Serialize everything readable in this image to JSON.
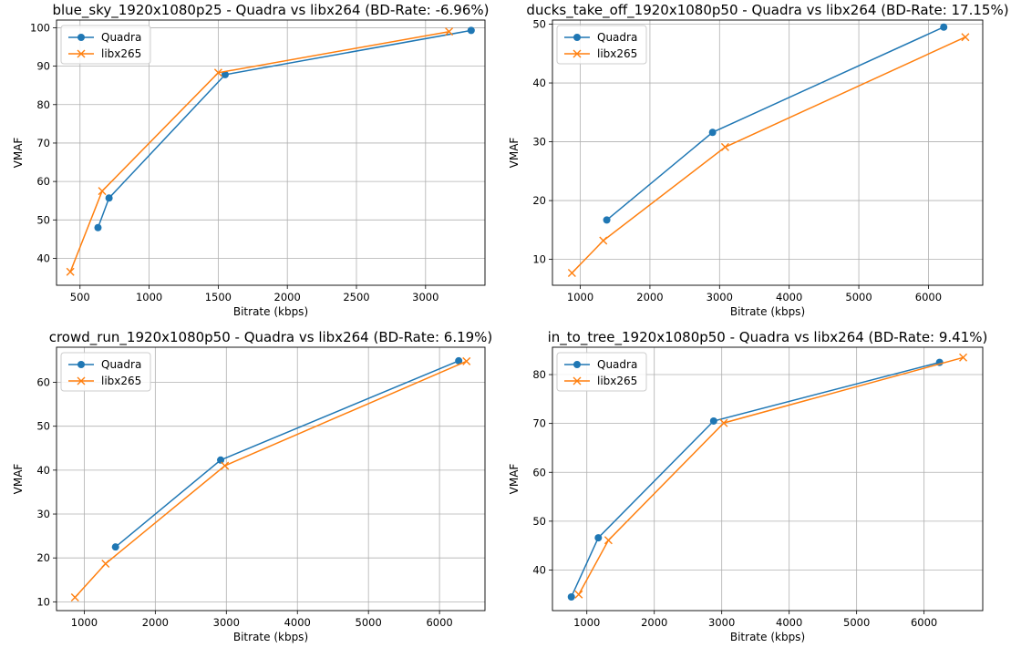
{
  "colors": {
    "quadra": "#1f77b4",
    "libx265": "#ff7f0e",
    "grid": "#b0b0b0"
  },
  "chart_data": [
    {
      "type": "line",
      "title": "blue_sky_1920x1080p25 - Quadra vs libx264 (BD-Rate: -6.96%)",
      "xlabel": "Bitrate (kbps)",
      "ylabel": "VMAF",
      "xlim": [
        330,
        3430
      ],
      "ylim": [
        33,
        102
      ],
      "xticks": [
        500,
        1000,
        1500,
        2000,
        2500,
        3000
      ],
      "yticks": [
        40,
        50,
        60,
        70,
        80,
        90,
        100
      ],
      "grid": true,
      "legend": "top-left",
      "series": [
        {
          "name": "Quadra",
          "marker": "circle",
          "x": [
            630,
            710,
            1550,
            3330
          ],
          "y": [
            48,
            55.7,
            87.8,
            99.3
          ]
        },
        {
          "name": "libx265",
          "marker": "x",
          "x": [
            430,
            660,
            1500,
            3170
          ],
          "y": [
            36.5,
            57.5,
            88.3,
            99.0
          ]
        }
      ]
    },
    {
      "type": "line",
      "title": "ducks_take_off_1920x1080p50 - Quadra vs libx264 (BD-Rate: 17.15%)",
      "xlabel": "Bitrate (kbps)",
      "ylabel": "VMAF",
      "xlim": [
        600,
        6780
      ],
      "ylim": [
        5.6,
        50.7
      ],
      "xticks": [
        1000,
        2000,
        3000,
        4000,
        5000,
        6000
      ],
      "yticks": [
        10,
        20,
        30,
        40,
        50
      ],
      "grid": true,
      "legend": "top-left",
      "series": [
        {
          "name": "Quadra",
          "marker": "circle",
          "x": [
            1380,
            2900,
            6220
          ],
          "y": [
            16.7,
            31.6,
            49.5
          ]
        },
        {
          "name": "libx265",
          "marker": "x",
          "x": [
            880,
            1330,
            3080,
            6530
          ],
          "y": [
            7.7,
            13.2,
            29.1,
            47.8
          ]
        }
      ]
    },
    {
      "type": "line",
      "title": "crowd_run_1920x1080p50 - Quadra vs libx264 (BD-Rate: 6.19%)",
      "xlabel": "Bitrate (kbps)",
      "ylabel": "VMAF",
      "xlim": [
        610,
        6640
      ],
      "ylim": [
        8,
        68
      ],
      "xticks": [
        1000,
        2000,
        3000,
        4000,
        5000,
        6000
      ],
      "yticks": [
        10,
        20,
        30,
        40,
        50,
        60
      ],
      "grid": true,
      "legend": "top-left",
      "series": [
        {
          "name": "Quadra",
          "marker": "circle",
          "x": [
            1440,
            2920,
            6270
          ],
          "y": [
            22.5,
            42.3,
            64.9
          ]
        },
        {
          "name": "libx265",
          "marker": "x",
          "x": [
            870,
            1300,
            2980,
            6380
          ],
          "y": [
            11,
            18.7,
            41,
            64.8
          ]
        }
      ]
    },
    {
      "type": "line",
      "title": "in_to_tree_1920x1080p50 - Quadra vs libx264 (BD-Rate: 9.41%)",
      "xlabel": "Bitrate (kbps)",
      "ylabel": "VMAF",
      "xlim": [
        490,
        6870
      ],
      "ylim": [
        31.7,
        85.6
      ],
      "xticks": [
        1000,
        2000,
        3000,
        4000,
        5000,
        6000
      ],
      "yticks": [
        40,
        50,
        60,
        70,
        80
      ],
      "grid": true,
      "legend": "top-left",
      "series": [
        {
          "name": "Quadra",
          "marker": "circle",
          "x": [
            770,
            1170,
            2880,
            6230
          ],
          "y": [
            34.5,
            46.6,
            70.5,
            82.5
          ]
        },
        {
          "name": "libx265",
          "marker": "x",
          "x": [
            880,
            1320,
            3030,
            6580
          ],
          "y": [
            35,
            46.1,
            70.1,
            83.5
          ]
        }
      ]
    }
  ]
}
